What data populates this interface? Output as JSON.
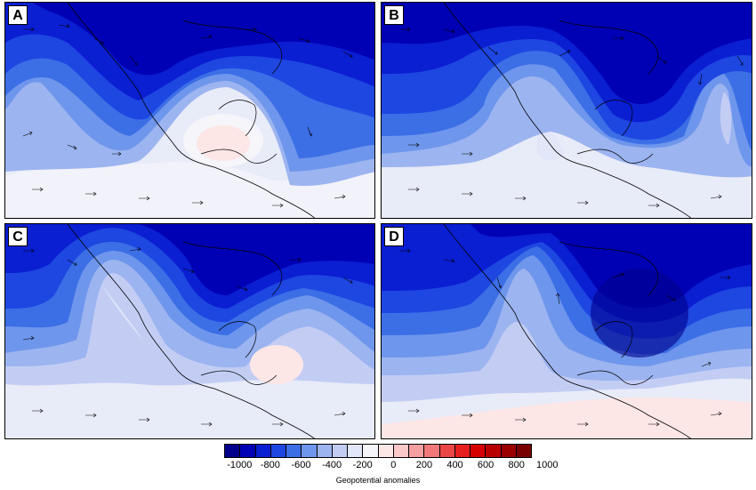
{
  "panels": [
    {
      "label": "A"
    },
    {
      "label": "B"
    },
    {
      "label": "C"
    },
    {
      "label": "D"
    }
  ],
  "colorbar": {
    "title": "Geopotential anomalies",
    "ticks": [
      "-1000",
      "-800",
      "-600",
      "-400",
      "-200",
      "0",
      "200",
      "400",
      "600",
      "800",
      "1000"
    ],
    "colors": [
      "#00008c",
      "#0000b4",
      "#0a1ed2",
      "#1e46e1",
      "#3c6ee6",
      "#6e96ec",
      "#9cb4f0",
      "#c3cdf4",
      "#e1e6f8",
      "#f5f5fa",
      "#fde6e6",
      "#fac8c8",
      "#f5a0a0",
      "#f07878",
      "#eb4646",
      "#e61e1e",
      "#d70000",
      "#b90000",
      "#9b0000",
      "#780000"
    ]
  }
}
